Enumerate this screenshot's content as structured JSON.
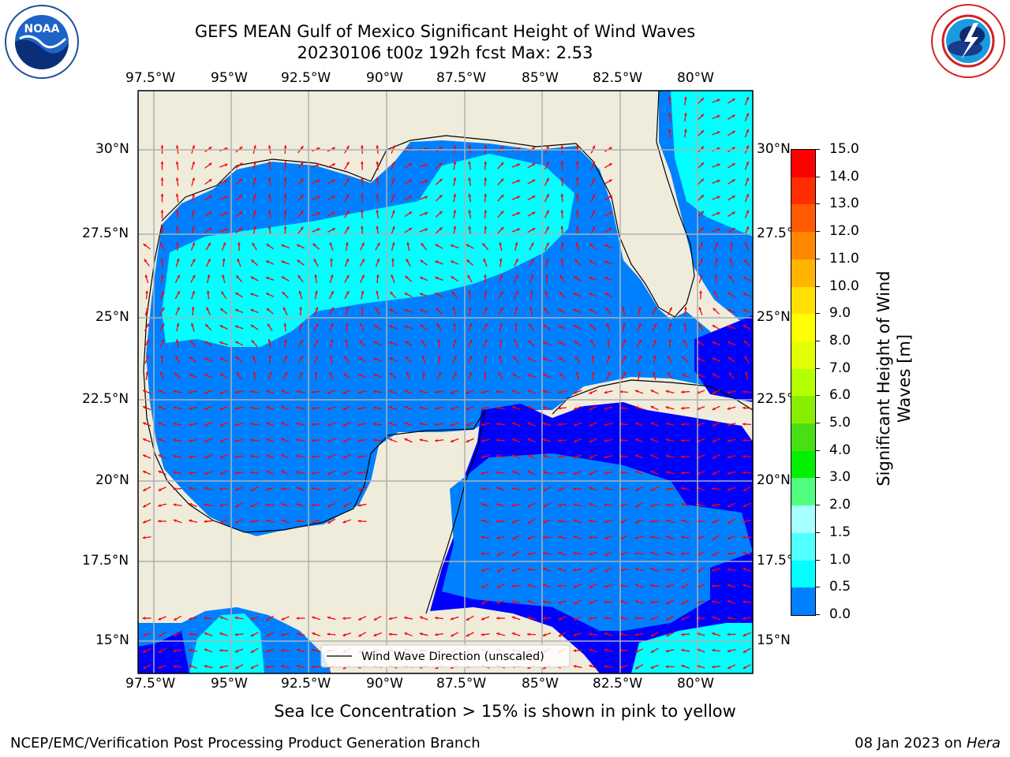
{
  "header": {
    "title_line1": "GEFS MEAN Gulf of Mexico Significant Height of Wind Waves",
    "title_line2": "20230106 t00z 192h fcst   Max: 2.53"
  },
  "logos": {
    "left": {
      "name": "NOAA",
      "ring_text": "NATIONAL OCEANIC AND ATMOSPHERIC ADMINISTRATION • U.S. DEPARTMENT OF COMMERCE"
    },
    "right": {
      "ring_text": "NATIONAL WEATHER SERVICE"
    }
  },
  "map": {
    "lon_labels": [
      "97.5°W",
      "95°W",
      "92.5°W",
      "90°W",
      "87.5°W",
      "85°W",
      "82.5°W",
      "80°W"
    ],
    "lat_labels": [
      "30°N",
      "27.5°N",
      "25°N",
      "22.5°N",
      "20°N",
      "17.5°N",
      "15°N"
    ],
    "legend_label": "Wind Wave Direction (unscaled)",
    "colors": {
      "land": "#efecdc",
      "ocean_low": "#0000ff",
      "ocean_mid": "#0080ff",
      "ocean_high": "#00ffff",
      "arrow": "#ff0000",
      "grid": "#b0b0b0"
    }
  },
  "colorbar": {
    "label": "Significant Height of Wind Waves [m]",
    "label_line1": "Significant Height of Wind",
    "label_line2": "Waves [m]",
    "ticks": [
      "15.0",
      "14.0",
      "13.0",
      "12.0",
      "11.0",
      "10.0",
      "9.0",
      "8.0",
      "7.0",
      "6.0",
      "5.0",
      "4.0",
      "3.0",
      "2.0",
      "1.5",
      "1.0",
      "0.5",
      "0.0"
    ],
    "colors_top_to_bottom": [
      "#ff0000",
      "#ff2e00",
      "#ff5a00",
      "#ff8800",
      "#ffb400",
      "#ffe100",
      "#ffff00",
      "#e1ff00",
      "#b4ff00",
      "#88ee00",
      "#4adf15",
      "#00f000",
      "#50ff80",
      "#a8ffff",
      "#50ffff",
      "#00ffff",
      "#0080ff",
      "#0000ff"
    ]
  },
  "note": "Sea Ice Concentration > 15% is shown in pink to yellow",
  "footer": {
    "left": "NCEP/EMC/Verification Post Processing Product Generation Branch",
    "right_date": "08 Jan 2023 on ",
    "right_host": "Hera"
  }
}
